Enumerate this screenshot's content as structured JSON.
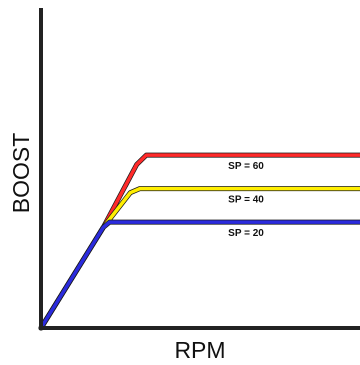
{
  "chart_data": {
    "type": "line",
    "title": "",
    "xlabel": "RPM",
    "ylabel": "BOOST",
    "grid": false,
    "legend": "none",
    "xlim": [
      0,
      100
    ],
    "ylim": [
      0,
      100
    ],
    "series": [
      {
        "name": "SP = 60",
        "color": "#ff2a2a",
        "points": [
          [
            0,
            0
          ],
          [
            19.5,
            37.5
          ],
          [
            30,
            61
          ],
          [
            33,
            64.5
          ],
          [
            100,
            64.5
          ]
        ]
      },
      {
        "name": "SP = 40",
        "color": "#ffee00",
        "points": [
          [
            0,
            0
          ],
          [
            19.5,
            37.5
          ],
          [
            28,
            50.5
          ],
          [
            31,
            52
          ],
          [
            100,
            52
          ]
        ]
      },
      {
        "name": "SP = 20",
        "color": "#2b2bdd",
        "points": [
          [
            0,
            0
          ],
          [
            19.5,
            37.5
          ],
          [
            21.5,
            39.5
          ],
          [
            24,
            39.5
          ],
          [
            100,
            39.5
          ]
        ]
      }
    ]
  }
}
